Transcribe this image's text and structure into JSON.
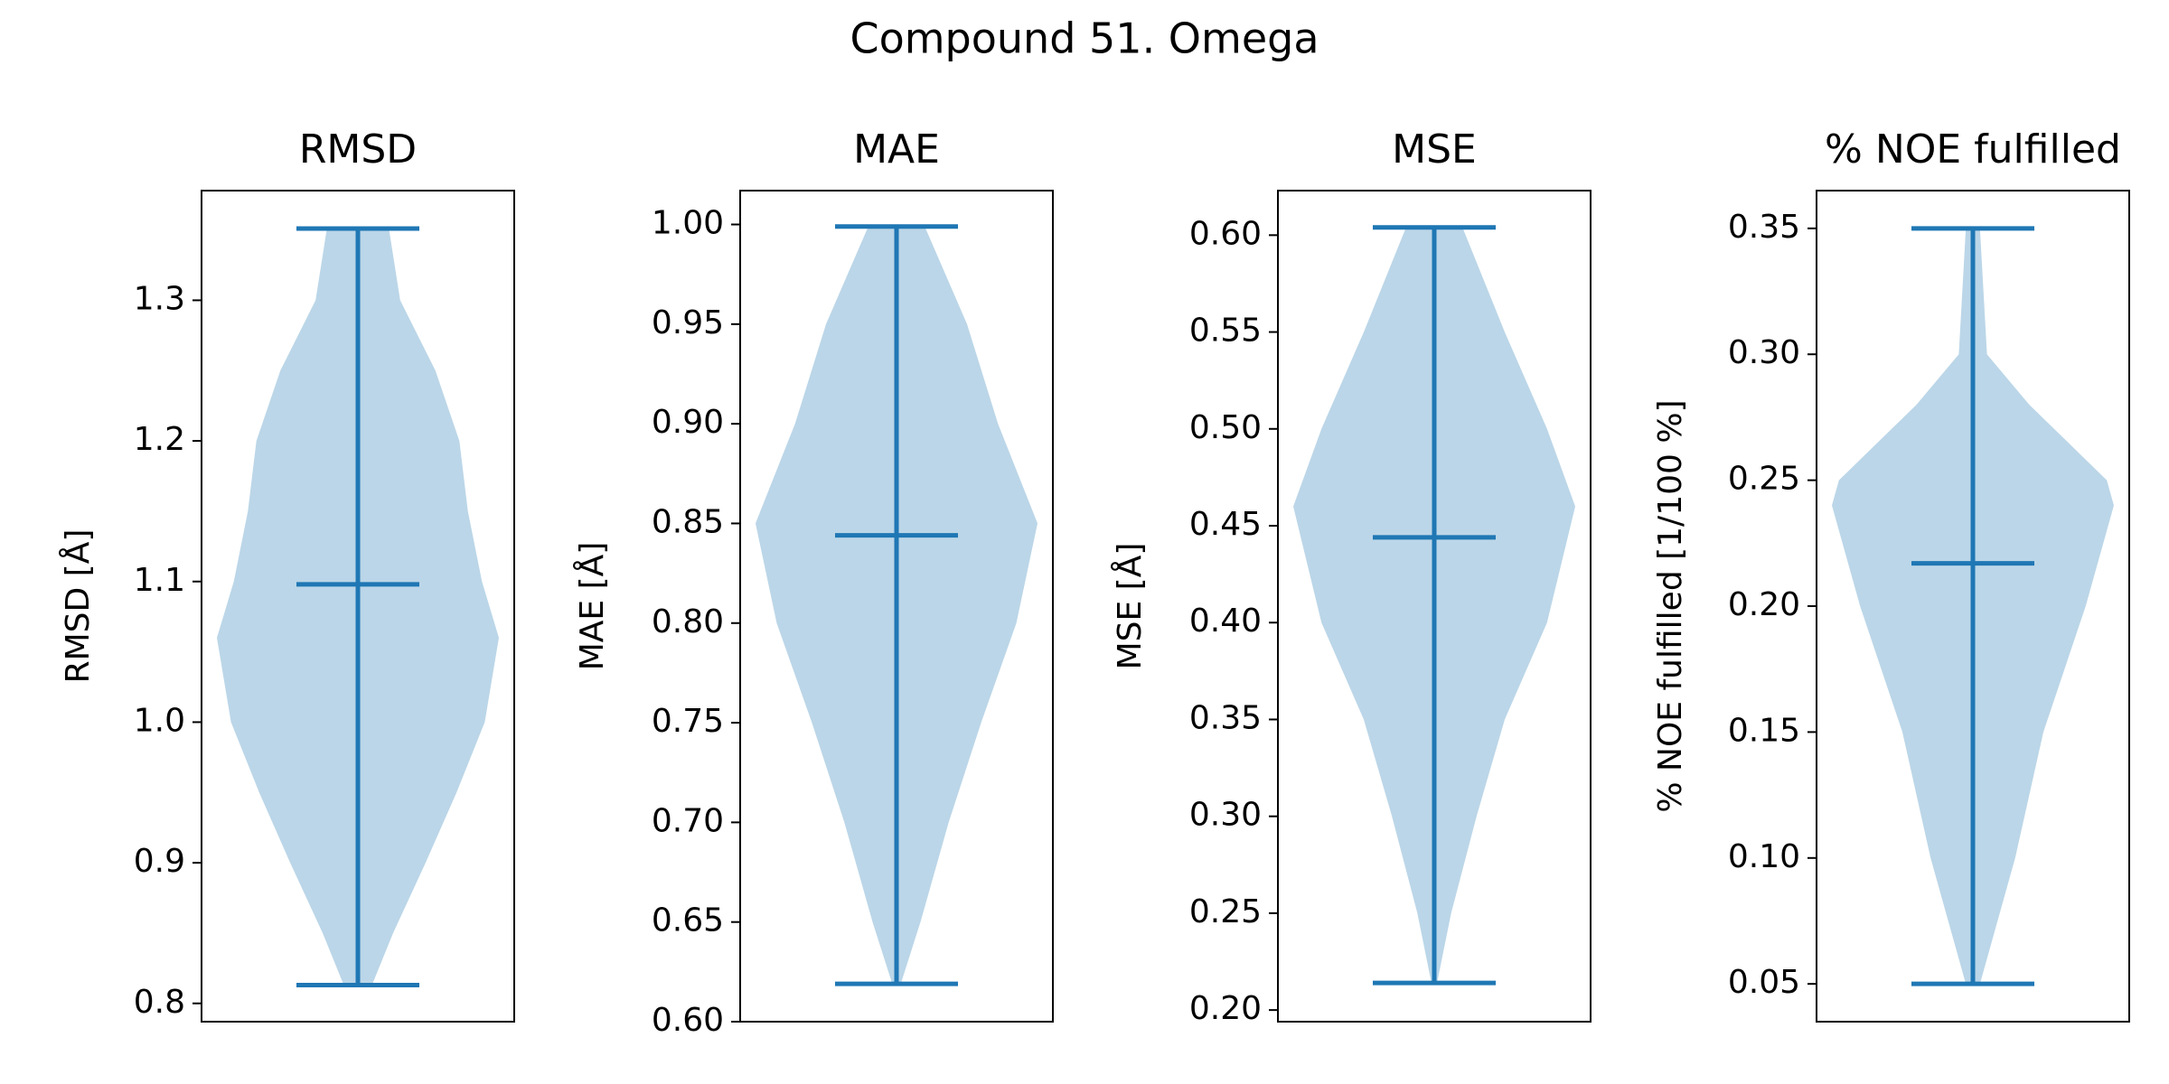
{
  "title": "Compound 51. Omega",
  "chart_data": [
    {
      "type": "violin",
      "title": "RMSD",
      "ylabel": "RMSD [Å]",
      "color": "#1f77b4",
      "min": 0.813,
      "mean": 1.098,
      "max": 1.351,
      "kde": {
        "y": [
          0.813,
          0.85,
          0.9,
          0.95,
          1.0,
          1.06,
          1.1,
          1.15,
          1.2,
          1.25,
          1.3,
          1.351
        ],
        "width": [
          0.1,
          0.25,
          0.48,
          0.7,
          0.9,
          1.0,
          0.88,
          0.78,
          0.72,
          0.55,
          0.3,
          0.22
        ]
      },
      "ylim": [
        0.787,
        1.378
      ],
      "yticks": [
        0.8,
        0.9,
        {
          "value": 1,
          "label": "1.0"
        },
        1.1,
        1.2,
        1.3
      ]
    },
    {
      "type": "violin",
      "title": "MAE",
      "ylabel": "MAE [Å]",
      "color": "#1f77b4",
      "min": 0.619,
      "mean": 0.844,
      "max": 0.999,
      "kde": {
        "y": [
          0.619,
          0.65,
          0.7,
          0.75,
          0.8,
          0.85,
          0.9,
          0.95,
          0.999
        ],
        "width": [
          0.03,
          0.17,
          0.37,
          0.6,
          0.85,
          1.0,
          0.72,
          0.5,
          0.2
        ]
      },
      "ylim": [
        0.6,
        1.017
      ],
      "yticks": [
        {
          "value": 0.6,
          "label": "0.60"
        },
        0.65,
        {
          "value": 0.7,
          "label": "0.70"
        },
        0.75,
        {
          "value": 0.8,
          "label": "0.80"
        },
        0.85,
        {
          "value": 0.9,
          "label": "0.90"
        },
        0.95,
        {
          "value": 1,
          "label": "1.00"
        }
      ]
    },
    {
      "type": "violin",
      "title": "MSE",
      "ylabel": "MSE [Å]",
      "color": "#1f77b4",
      "min": 0.214,
      "mean": 0.444,
      "max": 0.604,
      "kde": {
        "y": [
          0.214,
          0.25,
          0.3,
          0.35,
          0.4,
          0.46,
          0.5,
          0.55,
          0.604
        ],
        "width": [
          0.02,
          0.12,
          0.3,
          0.5,
          0.8,
          1.0,
          0.8,
          0.5,
          0.2
        ]
      },
      "ylim": [
        0.194,
        0.623
      ],
      "yticks": [
        {
          "value": 0.2,
          "label": "0.20"
        },
        0.25,
        {
          "value": 0.3,
          "label": "0.30"
        },
        0.35,
        {
          "value": 0.4,
          "label": "0.40"
        },
        0.45,
        {
          "value": 0.5,
          "label": "0.50"
        },
        0.55,
        {
          "value": 0.6,
          "label": "0.60"
        }
      ]
    },
    {
      "type": "violin",
      "title": "% NOE fulfilled",
      "ylabel": "% NOE fulfilled [1/100 %]",
      "color": "#1f77b4",
      "min": 0.05,
      "mean": 0.217,
      "max": 0.35,
      "kde": {
        "y": [
          0.05,
          0.1,
          0.15,
          0.2,
          0.22,
          0.24,
          0.25,
          0.28,
          0.3,
          0.35
        ],
        "width": [
          0.05,
          0.3,
          0.5,
          0.8,
          0.9,
          1.0,
          0.95,
          0.4,
          0.1,
          0.05
        ]
      },
      "ylim": [
        0.035,
        0.365
      ],
      "yticks": [
        0.05,
        {
          "value": 0.1,
          "label": "0.10"
        },
        0.15,
        {
          "value": 0.2,
          "label": "0.20"
        },
        0.25,
        {
          "value": 0.3,
          "label": "0.30"
        },
        0.35
      ]
    }
  ]
}
